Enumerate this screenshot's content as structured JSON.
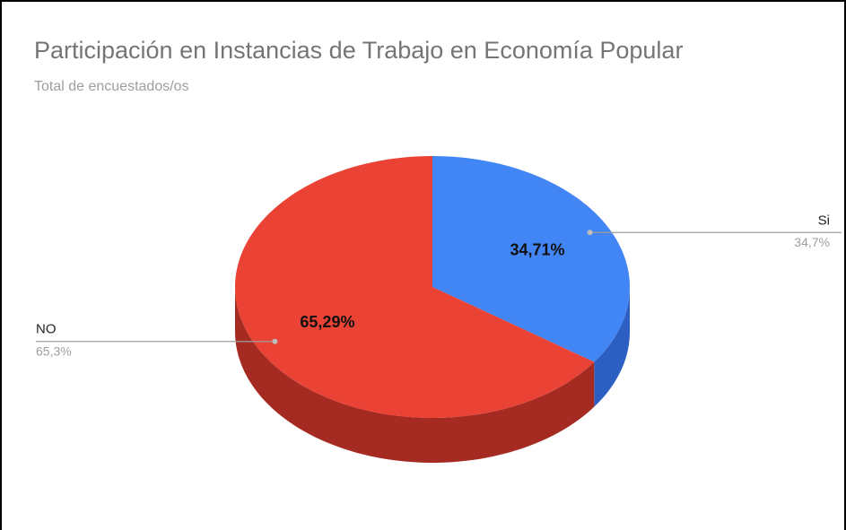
{
  "chart_data": {
    "type": "pie",
    "title": "Participación en Instancias de Trabajo en Economía Popular",
    "subtitle": "Total de encuestados/os",
    "categories": [
      "Si",
      "NO"
    ],
    "values": [
      34.71,
      65.29
    ],
    "value_labels": [
      "34,71%",
      "65,29%"
    ],
    "callout_labels": [
      "34,7%",
      "65,3%"
    ],
    "colors": [
      "#4285f4",
      "#ea4335"
    ],
    "side_colors": [
      "#2d5fc2",
      "#a52b22"
    ]
  }
}
